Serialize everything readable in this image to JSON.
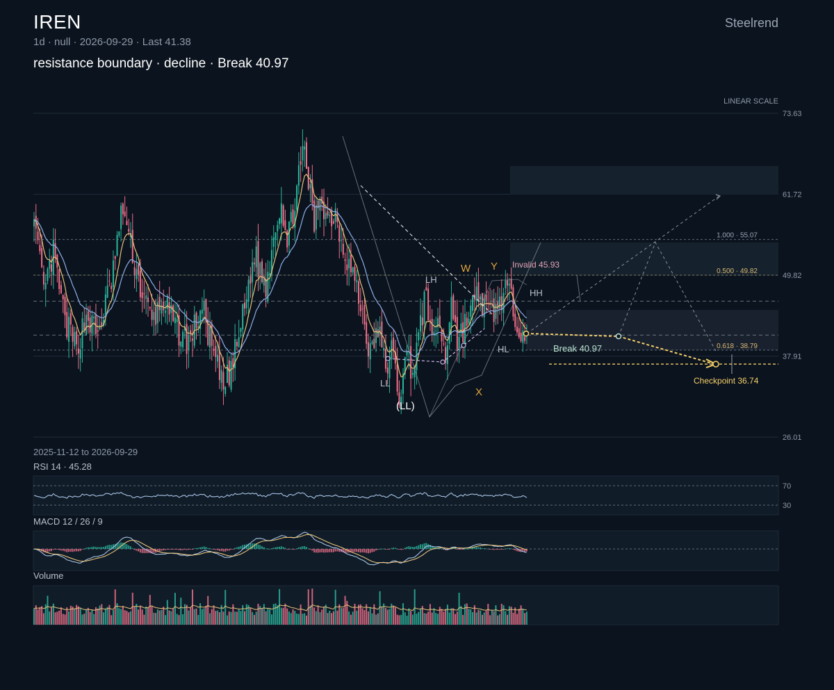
{
  "header": {
    "ticker": "IREN",
    "meta": "1d · null · 2026-09-29 · Last 41.38",
    "headline": "resistance boundary · decline · Break 40.97",
    "brand": "Steelrend"
  },
  "colors": {
    "background": "#0b131e",
    "up": "#2bb59b",
    "down": "#f0708a",
    "ema_fast": "#e8c37a",
    "ema_slow": "#8fb0ea",
    "projection": "#f5d06a",
    "zone": "#16232f"
  },
  "chart_data": {
    "type": "candlestick",
    "symbol": "IREN",
    "interval": "1d",
    "date_range": "2025-11-12 to 2026-09-29",
    "scale_label": "LINEAR SCALE",
    "last_price": 41.38,
    "y_ticks": [
      73.63,
      61.72,
      49.82,
      37.91,
      26.01
    ],
    "ylim": [
      26.01,
      73.63
    ],
    "bars": 220,
    "anchors": [
      [
        0,
        58
      ],
      [
        5,
        47
      ],
      [
        10,
        53
      ],
      [
        16,
        43
      ],
      [
        22,
        39
      ],
      [
        27,
        44
      ],
      [
        33,
        41
      ],
      [
        40,
        49
      ],
      [
        46,
        60
      ],
      [
        50,
        54
      ],
      [
        55,
        48
      ],
      [
        61,
        43
      ],
      [
        67,
        46
      ],
      [
        73,
        42
      ],
      [
        80,
        40
      ],
      [
        87,
        45
      ],
      [
        93,
        38
      ],
      [
        98,
        33
      ],
      [
        103,
        37
      ],
      [
        109,
        45
      ],
      [
        114,
        53
      ],
      [
        120,
        48
      ],
      [
        124,
        56
      ],
      [
        128,
        61
      ],
      [
        131,
        54
      ],
      [
        136,
        63
      ],
      [
        140,
        68
      ],
      [
        145,
        57
      ],
      [
        148,
        62
      ],
      [
        152,
        58
      ],
      [
        156,
        59
      ],
      [
        160,
        54
      ],
      [
        165,
        50
      ],
      [
        170,
        44
      ],
      [
        174,
        38
      ],
      [
        178,
        42
      ],
      [
        182,
        36
      ],
      [
        185,
        39
      ],
      [
        189,
        32
      ],
      [
        193,
        38
      ],
      [
        196,
        36
      ],
      [
        200,
        42
      ],
      [
        203,
        48
      ],
      [
        206,
        39
      ],
      [
        209,
        44
      ],
      [
        213,
        37
      ],
      [
        216,
        47
      ],
      [
        219,
        40
      ],
      [
        225,
        44
      ],
      [
        230,
        47
      ],
      [
        235,
        44
      ],
      [
        240,
        45
      ],
      [
        244,
        48
      ],
      [
        248,
        45
      ],
      [
        252,
        42
      ],
      [
        255,
        41.4
      ]
    ],
    "levels": [
      {
        "label": "1.000 · 55.07",
        "value": 55.07
      },
      {
        "label": "0.500 · 49.82",
        "value": 49.82
      },
      {
        "label": "0.618 · 38.79",
        "value": 38.79
      }
    ],
    "dashed_lines": [
      46.0,
      41.0,
      36.74
    ],
    "annotations": {
      "invalid": "Invalid 45.93",
      "break": "Break 40.97",
      "checkpoint": "Checkpoint 36.74",
      "wave_w": "W",
      "wave_y": "Y",
      "wave_x": "X",
      "lh": "LH",
      "hh": "HH",
      "hl": "HL",
      "ll": "LL",
      "ll_paren": "(LL)"
    },
    "rsi": {
      "label": "RSI 14 · 45.28",
      "levels": [
        70,
        30
      ],
      "value": 45.28
    },
    "macd": {
      "label": "MACD 12 / 26 / 9"
    },
    "volume": {
      "label": "Volume"
    }
  }
}
